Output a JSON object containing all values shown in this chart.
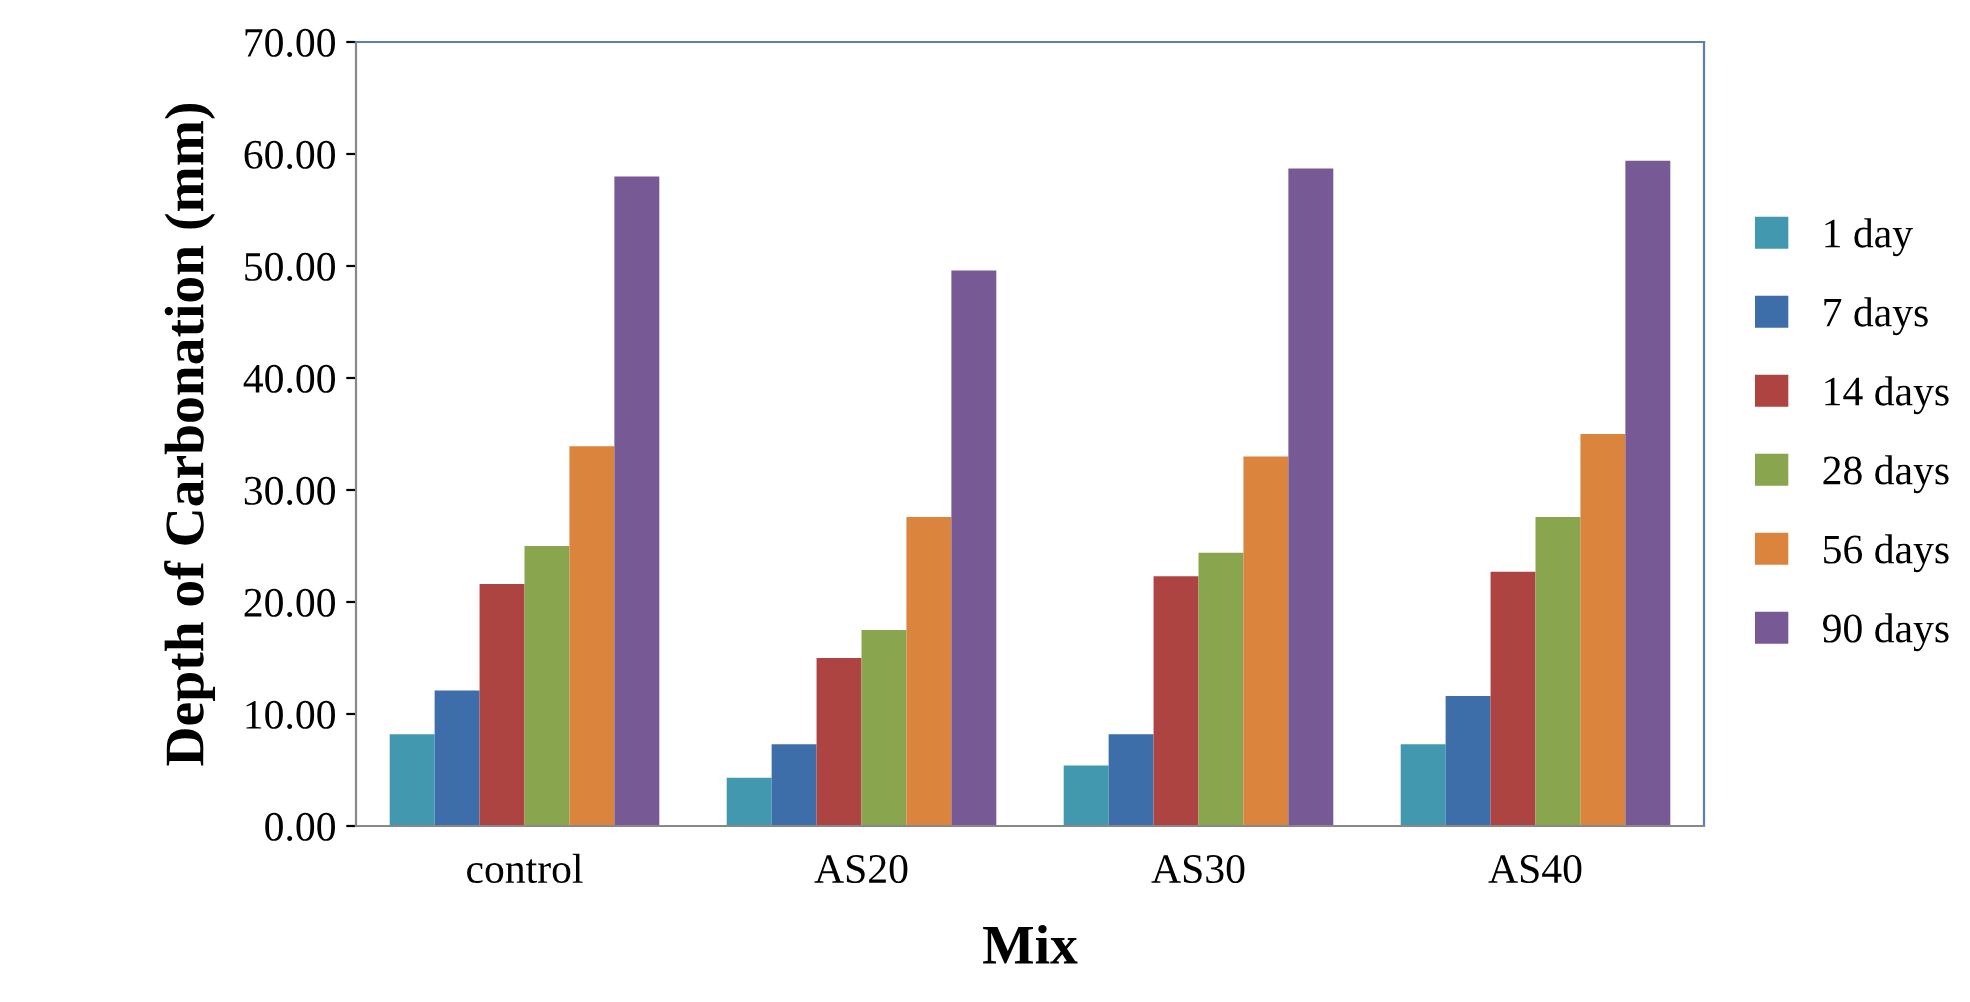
{
  "chart_data": {
    "type": "bar",
    "xlabel": "Mix",
    "ylabel": "Depth of Carbonation (mm)",
    "categories": [
      "control",
      "AS20",
      "AS30",
      "AS40"
    ],
    "series": [
      {
        "name": "1 day",
        "color": "#4198af",
        "values": [
          8.2,
          4.3,
          5.4,
          7.3
        ]
      },
      {
        "name": "7 days",
        "color": "#3d6ea9",
        "values": [
          12.1,
          7.3,
          8.2,
          11.6
        ]
      },
      {
        "name": "14 days",
        "color": "#ad4442",
        "values": [
          21.6,
          15.0,
          22.3,
          22.7
        ]
      },
      {
        "name": "28 days",
        "color": "#89a54e",
        "values": [
          25.0,
          17.5,
          24.4,
          27.6
        ]
      },
      {
        "name": "56 days",
        "color": "#db843d",
        "values": [
          33.9,
          27.6,
          33.0,
          35.0
        ]
      },
      {
        "name": "90 days",
        "color": "#775a95",
        "values": [
          58.0,
          49.6,
          58.7,
          59.4
        ]
      }
    ],
    "ylim": [
      0,
      70
    ],
    "yticks": [
      {
        "value": 0,
        "label": "0.00"
      },
      {
        "value": 10,
        "label": "10.00"
      },
      {
        "value": 20,
        "label": "20.00"
      },
      {
        "value": 30,
        "label": "30.00"
      },
      {
        "value": 40,
        "label": "40.00"
      },
      {
        "value": 50,
        "label": "50.00"
      },
      {
        "value": 60,
        "label": "60.00"
      },
      {
        "value": 70,
        "label": "70.00"
      }
    ],
    "grid": false,
    "legend": "right"
  }
}
